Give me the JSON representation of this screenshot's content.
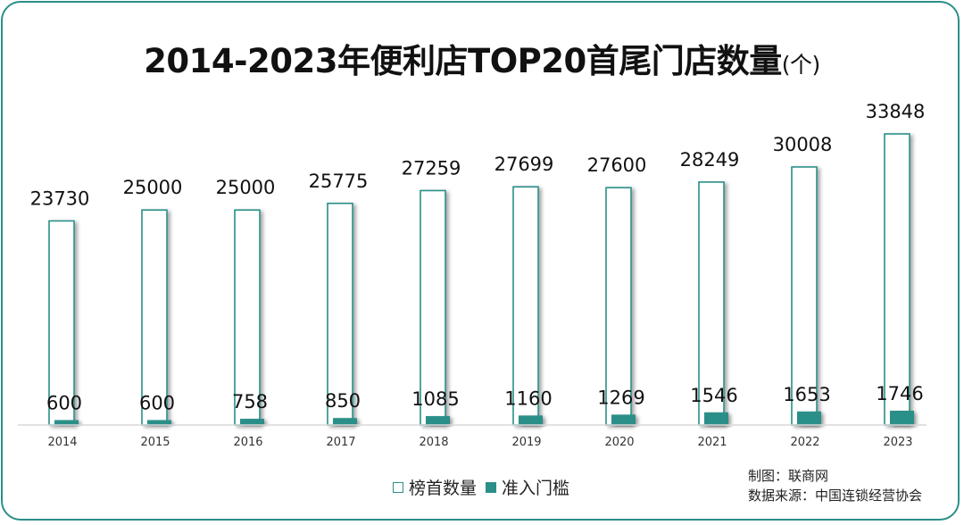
{
  "chart_data": {
    "type": "bar",
    "title": "2014-2023年便利店TOP20首尾门店数量",
    "title_unit": "(个)",
    "categories": [
      "2014",
      "2015",
      "2016",
      "2017",
      "2018",
      "2019",
      "2020",
      "2021",
      "2022",
      "2023"
    ],
    "series": [
      {
        "name": "榜首数量",
        "style": "outline",
        "values": [
          23730,
          25000,
          25000,
          25775,
          27259,
          27699,
          27600,
          28249,
          30008,
          33848
        ]
      },
      {
        "name": "准入门槛",
        "style": "filled",
        "values": [
          600,
          600,
          758,
          850,
          1085,
          1160,
          1269,
          1546,
          1653,
          1746
        ]
      }
    ],
    "xlabel": "",
    "ylabel": "",
    "grid": false,
    "legend_position": "bottom-center",
    "colors": {
      "accent": "#2a8f88",
      "axis": "#d9d9d9",
      "text": "#222222"
    }
  },
  "footer": {
    "credit": "制图：联商网",
    "source": "数据来源：中国连锁经营协会"
  }
}
